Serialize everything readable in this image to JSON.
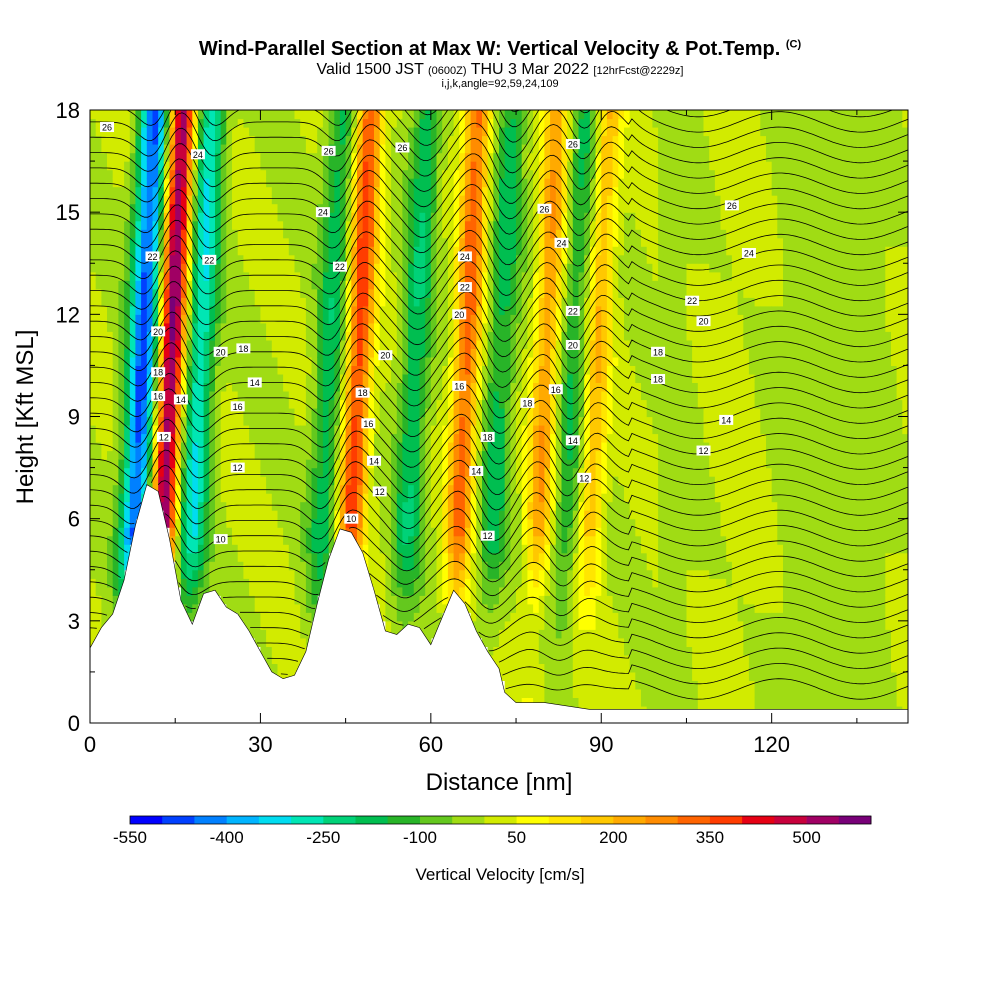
{
  "title": {
    "main": "Wind-Parallel Section at Max W: Vertical Velocity & Pot.Temp.",
    "copyright": "(C)",
    "valid_prefix": "Valid 1500 JST",
    "valid_utc": "(0600Z)",
    "valid_date": "THU 3 Mar 2022",
    "forecast": "[12hrFcst@2229z]",
    "indices": "i,j,k,angle=92,59,24,109"
  },
  "chart_data": {
    "type": "heatmap",
    "title": "Wind-Parallel Section at Max W: Vertical Velocity & Pot.Temp.",
    "xlabel": "Distance [nm]",
    "ylabel": "Height [Kft MSL]",
    "xlim": [
      0,
      144
    ],
    "ylim": [
      0,
      18
    ],
    "x_ticks": [
      "0",
      "30",
      "60",
      "90",
      "120"
    ],
    "y_ticks": [
      "0",
      "3",
      "6",
      "9",
      "12",
      "15",
      "18"
    ],
    "colorbar": {
      "label": "Vertical Velocity [cm/s]",
      "min": -550,
      "max": 600,
      "step": 50,
      "tick_labels": [
        "-550",
        "-400",
        "-250",
        "-100",
        "50",
        "200",
        "350",
        "500"
      ],
      "colors": [
        "#0000ff",
        "#0040ff",
        "#0080ff",
        "#00b4ff",
        "#00dcf0",
        "#00e6b4",
        "#00d278",
        "#00be50",
        "#28b428",
        "#64c81e",
        "#a0dc14",
        "#d2eb00",
        "#ffff00",
        "#ffe600",
        "#ffc800",
        "#ffaa00",
        "#ff8c00",
        "#ff6400",
        "#ff3c00",
        "#e60014",
        "#c8003c",
        "#a00064",
        "#780078"
      ]
    },
    "terrain_height_kft": [
      [
        0,
        2.2
      ],
      [
        2,
        2.8
      ],
      [
        4,
        3.2
      ],
      [
        6,
        4.2
      ],
      [
        8,
        5.8
      ],
      [
        10,
        7.0
      ],
      [
        12,
        6.8
      ],
      [
        14,
        5.4
      ],
      [
        16,
        3.6
      ],
      [
        18,
        2.9
      ],
      [
        20,
        3.8
      ],
      [
        22,
        3.9
      ],
      [
        24,
        3.4
      ],
      [
        26,
        3.2
      ],
      [
        28,
        2.7
      ],
      [
        30,
        2.1
      ],
      [
        32,
        1.5
      ],
      [
        34,
        1.3
      ],
      [
        36,
        1.4
      ],
      [
        38,
        2.1
      ],
      [
        40,
        3.5
      ],
      [
        42,
        4.8
      ],
      [
        44,
        5.7
      ],
      [
        46,
        5.6
      ],
      [
        48,
        5.0
      ],
      [
        50,
        3.9
      ],
      [
        52,
        2.7
      ],
      [
        54,
        2.6
      ],
      [
        56,
        2.9
      ],
      [
        58,
        2.8
      ],
      [
        60,
        2.3
      ],
      [
        62,
        3.1
      ],
      [
        64,
        3.9
      ],
      [
        66,
        3.5
      ],
      [
        68,
        2.7
      ],
      [
        70,
        2.1
      ],
      [
        72,
        1.6
      ],
      [
        73,
        0.9
      ],
      [
        75,
        0.6
      ],
      [
        80,
        0.6
      ],
      [
        88,
        0.4
      ],
      [
        100,
        0.4
      ],
      [
        120,
        0.4
      ],
      [
        144,
        0.4
      ]
    ],
    "updraft_axes_nm": [
      17,
      50,
      69,
      83,
      92
    ],
    "downdraft_axes_nm": [
      12,
      22,
      45,
      60,
      75,
      88
    ],
    "theta_contour_labels": [
      {
        "text": "26",
        "x": 3,
        "y": 17.5
      },
      {
        "text": "24",
        "x": 19,
        "y": 16.7
      },
      {
        "text": "26",
        "x": 42,
        "y": 16.8
      },
      {
        "text": "26",
        "x": 55,
        "y": 16.9
      },
      {
        "text": "26",
        "x": 85,
        "y": 17.0
      },
      {
        "text": "24",
        "x": 41,
        "y": 15.0
      },
      {
        "text": "26",
        "x": 80,
        "y": 15.1
      },
      {
        "text": "26",
        "x": 113,
        "y": 15.2
      },
      {
        "text": "24",
        "x": 83,
        "y": 14.1
      },
      {
        "text": "24",
        "x": 66,
        "y": 13.7
      },
      {
        "text": "24",
        "x": 116,
        "y": 13.8
      },
      {
        "text": "22",
        "x": 11,
        "y": 13.7
      },
      {
        "text": "22",
        "x": 21,
        "y": 13.6
      },
      {
        "text": "22",
        "x": 44,
        "y": 13.4
      },
      {
        "text": "22",
        "x": 66,
        "y": 12.8
      },
      {
        "text": "22",
        "x": 106,
        "y": 12.4
      },
      {
        "text": "22",
        "x": 85,
        "y": 12.1
      },
      {
        "text": "20",
        "x": 65,
        "y": 12.0
      },
      {
        "text": "20",
        "x": 108,
        "y": 11.8
      },
      {
        "text": "20",
        "x": 12,
        "y": 11.5
      },
      {
        "text": "20",
        "x": 85,
        "y": 11.1
      },
      {
        "text": "20",
        "x": 23,
        "y": 10.9
      },
      {
        "text": "20",
        "x": 52,
        "y": 10.8
      },
      {
        "text": "18",
        "x": 27,
        "y": 11.0
      },
      {
        "text": "18",
        "x": 100,
        "y": 10.9
      },
      {
        "text": "18",
        "x": 12,
        "y": 10.3
      },
      {
        "text": "18",
        "x": 100,
        "y": 10.1
      },
      {
        "text": "14",
        "x": 29,
        "y": 10.0
      },
      {
        "text": "16",
        "x": 82,
        "y": 9.8
      },
      {
        "text": "16",
        "x": 65,
        "y": 9.9
      },
      {
        "text": "18",
        "x": 48,
        "y": 9.7
      },
      {
        "text": "16",
        "x": 12,
        "y": 9.6
      },
      {
        "text": "14",
        "x": 16,
        "y": 9.5
      },
      {
        "text": "16",
        "x": 26,
        "y": 9.3
      },
      {
        "text": "18",
        "x": 77,
        "y": 9.4
      },
      {
        "text": "14",
        "x": 112,
        "y": 8.9
      },
      {
        "text": "16",
        "x": 49,
        "y": 8.8
      },
      {
        "text": "18",
        "x": 70,
        "y": 8.4
      },
      {
        "text": "12",
        "x": 13,
        "y": 8.4
      },
      {
        "text": "14",
        "x": 85,
        "y": 8.3
      },
      {
        "text": "12",
        "x": 108,
        "y": 8.0
      },
      {
        "text": "14",
        "x": 50,
        "y": 7.7
      },
      {
        "text": "14",
        "x": 68,
        "y": 7.4
      },
      {
        "text": "12",
        "x": 26,
        "y": 7.5
      },
      {
        "text": "12",
        "x": 87,
        "y": 7.2
      },
      {
        "text": "12",
        "x": 51,
        "y": 6.8
      },
      {
        "text": "10",
        "x": 46,
        "y": 6.0
      },
      {
        "text": "12",
        "x": 70,
        "y": 5.5
      },
      {
        "text": "10",
        "x": 23,
        "y": 5.4
      }
    ]
  }
}
